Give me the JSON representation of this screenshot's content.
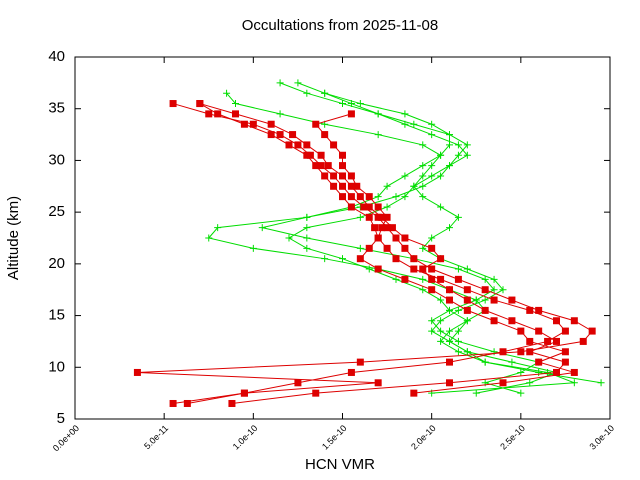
{
  "chart_data": {
    "type": "profile",
    "title": "Occultations from 2025-11-08",
    "x_label": "HCN VMR",
    "y_label": "Altitude (km)",
    "xlim": [
      0,
      3e-10
    ],
    "xticks": [
      {
        "value": 0,
        "label": "0.0e+00"
      },
      {
        "value": 5e-11,
        "label": "5.0e-11"
      },
      {
        "value": 1e-10,
        "label": "1.0e-10"
      },
      {
        "value": 1.5e-10,
        "label": "1.5e-10"
      },
      {
        "value": 2e-10,
        "label": "2.0e-10"
      },
      {
        "value": 2.5e-10,
        "label": "2.5e-10"
      },
      {
        "value": 3e-10,
        "label": "3.0e-10"
      }
    ],
    "ylim": [
      5,
      40
    ],
    "yticks": [
      5,
      10,
      15,
      20,
      25,
      30,
      35,
      40
    ],
    "grid": false,
    "series": [
      {
        "color": "#00dd00",
        "marker": "plus",
        "x": [
          2e-10,
          2.8e-10,
          2.65e-10,
          2.3e-10,
          2.2e-10,
          2.1e-10,
          2.15e-10,
          2.2e-10,
          2.1e-10,
          2.05e-10,
          1.95e-10,
          1.8e-10,
          1.65e-10,
          1.5e-10,
          1.3e-10,
          1.2e-10,
          1.3e-10,
          1.6e-10,
          1.75e-10,
          1.85e-10,
          1.9e-10,
          1.95e-10,
          2e-10,
          2.05e-10,
          1.95e-10,
          1.7e-10,
          1.4e-10,
          1.15e-10,
          9e-11,
          8.5e-11
        ],
        "values": [
          7.5,
          8.5,
          9.5,
          10.5,
          11.5,
          12.5,
          13.5,
          14.5,
          15.5,
          16.5,
          17.5,
          18.5,
          19.5,
          20.5,
          21.5,
          22.5,
          23.5,
          24.5,
          25.5,
          26.5,
          27.5,
          28.5,
          29.5,
          30.5,
          31.5,
          32.5,
          33.5,
          34.5,
          35.5,
          36.5
        ]
      },
      {
        "color": "#00dd00",
        "marker": "plus",
        "x": [
          2.95e-10,
          2.6e-10,
          2.3e-10,
          2.15e-10,
          2.05e-10,
          2.1e-10,
          2.2e-10,
          2.3e-10,
          2.25e-10,
          2.1e-10,
          1.95e-10,
          1.7e-10,
          1.4e-10,
          1e-10,
          7.5e-11,
          8e-11,
          1.3e-10,
          1.6e-10,
          1.8e-10,
          1.95e-10,
          2.05e-10,
          2.1e-10,
          2.15e-10,
          2.2e-10,
          2.1e-10,
          1.9e-10,
          1.7e-10,
          1.5e-10,
          1.3e-10,
          1.15e-10
        ],
        "values": [
          8.5,
          9.5,
          10.5,
          11.5,
          12.5,
          13.5,
          14.5,
          15.5,
          16.5,
          17.5,
          18.5,
          19.5,
          20.5,
          21.5,
          22.5,
          23.5,
          24.5,
          25.5,
          26.5,
          27.5,
          28.5,
          29.5,
          30.5,
          31.5,
          32.5,
          33.5,
          34.5,
          35.5,
          36.5,
          37.5
        ]
      },
      {
        "color": "#00dd00",
        "marker": "plus",
        "x": [
          2.25e-10,
          2.55e-10,
          2.7e-10,
          2.45e-10,
          2.2e-10,
          2.1e-10,
          2e-10,
          2.05e-10,
          2.15e-10,
          2.3e-10,
          2.4e-10,
          2.35e-10,
          2.2e-10,
          2.05e-10,
          1.95e-10,
          2e-10,
          2.1e-10,
          2.15e-10,
          2.05e-10,
          1.95e-10,
          1.9e-10,
          2e-10,
          2.1e-10,
          2.2e-10,
          2.15e-10,
          2e-10,
          1.85e-10,
          1.7e-10,
          1.55e-10,
          1.4e-10,
          1.25e-10
        ],
        "values": [
          7.5,
          8.5,
          9.5,
          10.5,
          11.5,
          12.5,
          13.5,
          14.5,
          15.5,
          16.5,
          17.5,
          18.5,
          19.5,
          20.5,
          21.5,
          22.5,
          23.5,
          24.5,
          25.5,
          26.5,
          27.5,
          28.5,
          29.5,
          30.5,
          31.5,
          32.5,
          33.5,
          34.5,
          35.5,
          36.5,
          37.5
        ]
      },
      {
        "color": "#00dd00",
        "marker": "plus",
        "x": [
          2.5e-10,
          2.3e-10,
          2.5e-10,
          2.6e-10,
          2.35e-10,
          2.15e-10,
          2.05e-10,
          2e-10,
          2.1e-10,
          2.25e-10,
          2.35e-10,
          2.3e-10,
          2.15e-10,
          1.9e-10,
          1.6e-10,
          1.3e-10,
          1.05e-10,
          1.3e-10,
          1.55e-10,
          1.7e-10,
          1.75e-10,
          1.85e-10,
          1.95e-10,
          2.05e-10,
          2.1e-10,
          2.1e-10,
          2e-10,
          1.85e-10,
          1.6e-10,
          1.4e-10
        ],
        "values": [
          7.5,
          8.5,
          9.5,
          10.5,
          11.5,
          12.5,
          13.5,
          14.5,
          15.5,
          16.5,
          17.5,
          18.5,
          19.5,
          20.5,
          21.5,
          22.5,
          23.5,
          24.5,
          25.5,
          26.5,
          27.5,
          28.5,
          29.5,
          30.5,
          31.5,
          32.5,
          33.5,
          34.5,
          35.5,
          36.5
        ]
      },
      {
        "color": "#dd0000",
        "marker": "square",
        "x": [
          5.5e-11,
          9.5e-11,
          1.25e-10,
          1.55e-10,
          2.1e-10,
          2.4e-10,
          2.65e-10,
          2.75e-10,
          2.7e-10,
          2.55e-10,
          2.35e-10,
          2.2e-10,
          2.05e-10,
          1.9e-10,
          1.8e-10,
          1.75e-10,
          1.7e-10,
          1.68e-10,
          1.65e-10,
          1.55e-10,
          1.5e-10,
          1.45e-10,
          1.4e-10,
          1.35e-10,
          1.3e-10,
          1.2e-10,
          1.1e-10,
          9.5e-11,
          8e-11,
          7e-11
        ],
        "values": [
          6.5,
          7.5,
          8.5,
          9.5,
          10.5,
          11.5,
          12.5,
          13.5,
          14.5,
          15.5,
          16.5,
          17.5,
          18.5,
          19.5,
          20.5,
          21.5,
          22.5,
          23.5,
          24.5,
          25.5,
          26.5,
          27.5,
          28.5,
          29.5,
          30.5,
          31.5,
          32.5,
          33.5,
          34.5,
          35.5
        ]
      },
      {
        "color": "#dd0000",
        "marker": "square",
        "x": [
          6.3e-11,
          9.5e-11,
          1.7e-10,
          3.5e-11,
          1.6e-10,
          2.5e-10,
          2.85e-10,
          2.9e-10,
          2.8e-10,
          2.6e-10,
          2.45e-10,
          2.3e-10,
          2.15e-10,
          2e-10,
          1.9e-10,
          1.85e-10,
          1.8e-10,
          1.75e-10,
          1.7e-10,
          1.62e-10,
          1.55e-10,
          1.5e-10,
          1.45e-10,
          1.38e-10,
          1.32e-10,
          1.25e-10,
          1.15e-10,
          1e-10,
          7.5e-11,
          5.5e-11
        ],
        "values": [
          6.5,
          7.5,
          8.5,
          9.5,
          10.5,
          11.5,
          12.5,
          13.5,
          14.5,
          15.5,
          16.5,
          17.5,
          18.5,
          19.5,
          20.5,
          21.5,
          22.5,
          23.5,
          24.5,
          25.5,
          26.5,
          27.5,
          28.5,
          29.5,
          30.5,
          31.5,
          32.5,
          33.5,
          34.5,
          35.5
        ]
      },
      {
        "color": "#dd0000",
        "marker": "square",
        "x": [
          8.8e-11,
          1.35e-10,
          2.1e-10,
          2.7e-10,
          2.75e-10,
          2.55e-10,
          2.7e-10,
          2.6e-10,
          2.45e-10,
          2.3e-10,
          2.2e-10,
          2.1e-10,
          2e-10,
          1.95e-10,
          2.05e-10,
          2e-10,
          1.85e-10,
          1.78e-10,
          1.72e-10,
          1.65e-10,
          1.6e-10,
          1.55e-10,
          1.5e-10,
          1.42e-10,
          1.38e-10,
          1.3e-10,
          1.22e-10,
          1.1e-10,
          9e-11,
          7e-11
        ],
        "values": [
          6.5,
          7.5,
          8.5,
          9.5,
          10.5,
          11.5,
          12.5,
          13.5,
          14.5,
          15.5,
          16.5,
          17.5,
          18.5,
          19.5,
          20.5,
          21.5,
          22.5,
          23.5,
          24.5,
          25.5,
          26.5,
          27.5,
          28.5,
          29.5,
          30.5,
          31.5,
          32.5,
          33.5,
          34.5,
          35.5
        ]
      },
      {
        "color": "#dd0000",
        "marker": "square",
        "x": [
          1.9e-10,
          2.4e-10,
          2.8e-10,
          2.6e-10,
          2.75e-10,
          2.55e-10,
          2.5e-10,
          2.35e-10,
          2.2e-10,
          2.1e-10,
          2e-10,
          1.85e-10,
          1.7e-10,
          1.6e-10,
          1.65e-10,
          1.7e-10,
          1.72e-10,
          1.75e-10,
          1.7e-10,
          1.65e-10,
          1.58e-10,
          1.55e-10,
          1.5e-10,
          1.5e-10,
          1.45e-10,
          1.4e-10,
          1.35e-10,
          1.55e-10
        ],
        "values": [
          7.5,
          8.5,
          9.5,
          10.5,
          11.5,
          12.5,
          13.5,
          14.5,
          15.5,
          16.5,
          17.5,
          18.5,
          19.5,
          20.5,
          21.5,
          22.5,
          23.5,
          24.5,
          25.5,
          26.5,
          27.5,
          28.5,
          29.5,
          30.5,
          31.5,
          32.5,
          33.5,
          34.5
        ]
      }
    ]
  }
}
